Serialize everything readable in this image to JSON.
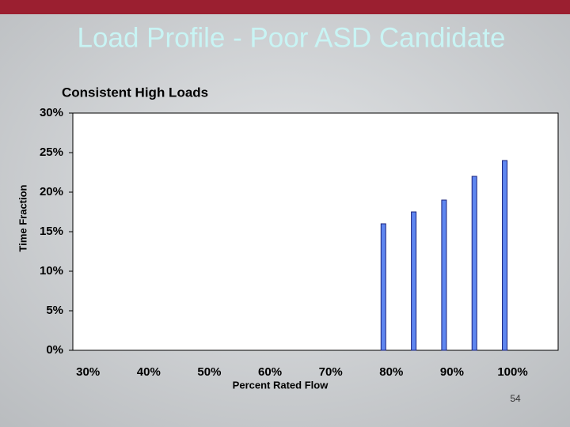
{
  "slide_title": "Load Profile - Poor ASD Candidate",
  "page_number": "54",
  "chart_data": {
    "type": "bar",
    "title": "Consistent High Loads",
    "x_label": "Percent Rated Flow",
    "y_label": "Time Fraction",
    "categories": [
      "30%",
      null,
      "40%",
      null,
      "50%",
      null,
      "60%",
      null,
      "70%",
      null,
      "80%",
      null,
      "90%",
      null,
      "100%",
      null
    ],
    "values": [
      null,
      null,
      null,
      null,
      null,
      null,
      null,
      null,
      null,
      null,
      16,
      17.5,
      19,
      22,
      24,
      null
    ],
    "color": "#5f86f0",
    "ylim": [
      0,
      30
    ],
    "yticks": [
      {
        "value": 0,
        "label": "0%"
      },
      {
        "value": 5,
        "label": "5%"
      },
      {
        "value": 10,
        "label": "10%"
      },
      {
        "value": 15,
        "label": "15%"
      },
      {
        "value": 20,
        "label": "20%"
      },
      {
        "value": 25,
        "label": "25%"
      },
      {
        "value": 30,
        "label": "30%"
      }
    ]
  }
}
